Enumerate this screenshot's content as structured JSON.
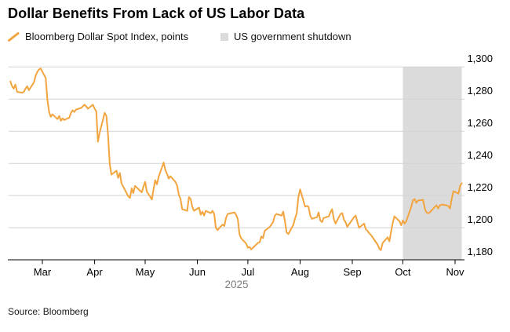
{
  "title": "Dollar Benefits From Lack of US Labor Data",
  "legend": {
    "series_label": "Bloomberg Dollar Spot Index, points",
    "band_label": "US government shutdown"
  },
  "source": "Source: Bloomberg",
  "colors": {
    "line": "#F2A43E",
    "band": "#DBDBDB",
    "grid": "#D3D3D3",
    "axis": "#000000",
    "tick_text": "#000000",
    "year_text": "#7D7D7D"
  },
  "chart_data": {
    "type": "line",
    "title": "Dollar Benefits From Lack of US Labor Data",
    "series_name": "Bloomberg Dollar Spot Index, points",
    "xlabel": "",
    "ylabel": "points",
    "ylim": [
      1180,
      1300
    ],
    "grid": "horizontal",
    "legend_position": "top-left",
    "y_axis": {
      "side": "right",
      "tick_values": [
        1180,
        1200,
        1220,
        1240,
        1260,
        1280,
        1300
      ],
      "tick_labels": [
        "1,180",
        "1,200",
        "1,220",
        "1,240",
        "1,260",
        "1,280",
        "1,300"
      ]
    },
    "x_axis": {
      "tick_dates": [
        "2025-03-01",
        "2025-04-01",
        "2025-05-01",
        "2025-06-01",
        "2025-07-01",
        "2025-08-01",
        "2025-09-01",
        "2025-10-01",
        "2025-11-01"
      ],
      "tick_labels": [
        "Mar",
        "Apr",
        "May",
        "Jun",
        "Jul",
        "Aug",
        "Sep",
        "Oct",
        "Nov"
      ],
      "year_label": "2025"
    },
    "band": {
      "label": "US government shutdown",
      "start": "2025-10-01",
      "end": "2025-11-05"
    },
    "points": [
      [
        "2025-02-10",
        1291
      ],
      [
        "2025-02-11",
        1288
      ],
      [
        "2025-02-12",
        1286.5
      ],
      [
        "2025-02-13",
        1289
      ],
      [
        "2025-02-14",
        1284.5
      ],
      [
        "2025-02-17",
        1284
      ],
      [
        "2025-02-18",
        1284.5
      ],
      [
        "2025-02-19",
        1286.5
      ],
      [
        "2025-02-20",
        1288
      ],
      [
        "2025-02-21",
        1285.5
      ],
      [
        "2025-02-24",
        1290.5
      ],
      [
        "2025-02-25",
        1294.5
      ],
      [
        "2025-02-26",
        1297
      ],
      [
        "2025-02-27",
        1298.5
      ],
      [
        "2025-02-28",
        1299
      ],
      [
        "2025-03-03",
        1293
      ],
      [
        "2025-03-04",
        1279.5
      ],
      [
        "2025-03-05",
        1272
      ],
      [
        "2025-03-06",
        1269
      ],
      [
        "2025-03-07",
        1270.5
      ],
      [
        "2025-03-10",
        1267.5
      ],
      [
        "2025-03-11",
        1269.5
      ],
      [
        "2025-03-12",
        1266.5
      ],
      [
        "2025-03-13",
        1268
      ],
      [
        "2025-03-14",
        1267
      ],
      [
        "2025-03-17",
        1268.5
      ],
      [
        "2025-03-18",
        1271.5
      ],
      [
        "2025-03-19",
        1273
      ],
      [
        "2025-03-20",
        1272
      ],
      [
        "2025-03-21",
        1273.5
      ],
      [
        "2025-03-24",
        1274.5
      ],
      [
        "2025-03-25",
        1275.5
      ],
      [
        "2025-03-26",
        1276.5
      ],
      [
        "2025-03-27",
        1275.5
      ],
      [
        "2025-03-28",
        1274
      ],
      [
        "2025-03-31",
        1276.5
      ],
      [
        "2025-04-01",
        1274
      ],
      [
        "2025-04-02",
        1272.5
      ],
      [
        "2025-04-03",
        1253.5
      ],
      [
        "2025-04-04",
        1259
      ],
      [
        "2025-04-07",
        1271.5
      ],
      [
        "2025-04-08",
        1269.5
      ],
      [
        "2025-04-09",
        1258
      ],
      [
        "2025-04-10",
        1239.5
      ],
      [
        "2025-04-11",
        1233
      ],
      [
        "2025-04-14",
        1235.5
      ],
      [
        "2025-04-15",
        1231
      ],
      [
        "2025-04-16",
        1234
      ],
      [
        "2025-04-17",
        1227.5
      ],
      [
        "2025-04-21",
        1219.5
      ],
      [
        "2025-04-22",
        1218.5
      ],
      [
        "2025-04-23",
        1224.5
      ],
      [
        "2025-04-24",
        1221.5
      ],
      [
        "2025-04-25",
        1226
      ],
      [
        "2025-04-28",
        1223
      ],
      [
        "2025-04-29",
        1222
      ],
      [
        "2025-04-30",
        1225.5
      ],
      [
        "2025-05-01",
        1228.5
      ],
      [
        "2025-05-02",
        1222.5
      ],
      [
        "2025-05-05",
        1217.5
      ],
      [
        "2025-05-06",
        1224
      ],
      [
        "2025-05-07",
        1229.5
      ],
      [
        "2025-05-08",
        1227
      ],
      [
        "2025-05-09",
        1231.5
      ],
      [
        "2025-05-12",
        1240.5
      ],
      [
        "2025-05-13",
        1236
      ],
      [
        "2025-05-14",
        1233.5
      ],
      [
        "2025-05-15",
        1230.5
      ],
      [
        "2025-05-16",
        1232
      ],
      [
        "2025-05-19",
        1228.5
      ],
      [
        "2025-05-20",
        1226
      ],
      [
        "2025-05-21",
        1220.5
      ],
      [
        "2025-05-22",
        1218
      ],
      [
        "2025-05-23",
        1211.5
      ],
      [
        "2025-05-26",
        1210.5
      ],
      [
        "2025-05-27",
        1219
      ],
      [
        "2025-05-28",
        1218
      ],
      [
        "2025-05-29",
        1213
      ],
      [
        "2025-05-30",
        1210.5
      ],
      [
        "2025-06-02",
        1212.5
      ],
      [
        "2025-06-03",
        1208
      ],
      [
        "2025-06-04",
        1210
      ],
      [
        "2025-06-05",
        1207.5
      ],
      [
        "2025-06-06",
        1210.5
      ],
      [
        "2025-06-09",
        1209
      ],
      [
        "2025-06-10",
        1210.5
      ],
      [
        "2025-06-11",
        1208.5
      ],
      [
        "2025-06-12",
        1200
      ],
      [
        "2025-06-13",
        1198.5
      ],
      [
        "2025-06-16",
        1202
      ],
      [
        "2025-06-17",
        1201
      ],
      [
        "2025-06-18",
        1206
      ],
      [
        "2025-06-19",
        1208.5
      ],
      [
        "2025-06-23",
        1209.5
      ],
      [
        "2025-06-24",
        1208
      ],
      [
        "2025-06-25",
        1205.5
      ],
      [
        "2025-06-26",
        1196
      ],
      [
        "2025-06-27",
        1193.5
      ],
      [
        "2025-06-30",
        1190
      ],
      [
        "2025-07-01",
        1187.5
      ],
      [
        "2025-07-02",
        1188
      ],
      [
        "2025-07-03",
        1186.5
      ],
      [
        "2025-07-07",
        1190.5
      ],
      [
        "2025-07-08",
        1191
      ],
      [
        "2025-07-09",
        1194.5
      ],
      [
        "2025-07-10",
        1193.5
      ],
      [
        "2025-07-11",
        1198
      ],
      [
        "2025-07-14",
        1200.5
      ],
      [
        "2025-07-15",
        1202
      ],
      [
        "2025-07-16",
        1203.5
      ],
      [
        "2025-07-17",
        1207.5
      ],
      [
        "2025-07-18",
        1208.5
      ],
      [
        "2025-07-21",
        1207.5
      ],
      [
        "2025-07-22",
        1210
      ],
      [
        "2025-07-23",
        1204
      ],
      [
        "2025-07-24",
        1197
      ],
      [
        "2025-07-25",
        1196
      ],
      [
        "2025-07-28",
        1201.8
      ],
      [
        "2025-07-29",
        1205.7
      ],
      [
        "2025-07-30",
        1209
      ],
      [
        "2025-07-31",
        1219
      ],
      [
        "2025-08-01",
        1223.8
      ],
      [
        "2025-08-04",
        1213
      ],
      [
        "2025-08-05",
        1213.5
      ],
      [
        "2025-08-06",
        1213
      ],
      [
        "2025-08-07",
        1207.5
      ],
      [
        "2025-08-08",
        1205.5
      ],
      [
        "2025-08-11",
        1206.5
      ],
      [
        "2025-08-12",
        1209.5
      ],
      [
        "2025-08-13",
        1204.5
      ],
      [
        "2025-08-14",
        1203.5
      ],
      [
        "2025-08-15",
        1206
      ],
      [
        "2025-08-18",
        1207
      ],
      [
        "2025-08-19",
        1209.5
      ],
      [
        "2025-08-20",
        1211.5
      ],
      [
        "2025-08-21",
        1205.5
      ],
      [
        "2025-08-22",
        1202.5
      ],
      [
        "2025-08-25",
        1208.5
      ],
      [
        "2025-08-26",
        1209
      ],
      [
        "2025-08-27",
        1205
      ],
      [
        "2025-08-28",
        1203.5
      ],
      [
        "2025-08-29",
        1200.5
      ],
      [
        "2025-09-01",
        1205
      ],
      [
        "2025-09-02",
        1206.5
      ],
      [
        "2025-09-03",
        1207.5
      ],
      [
        "2025-09-04",
        1203.5
      ],
      [
        "2025-09-05",
        1200
      ],
      [
        "2025-09-08",
        1202.5
      ],
      [
        "2025-09-09",
        1199
      ],
      [
        "2025-09-10",
        1198
      ],
      [
        "2025-09-11",
        1196.5
      ],
      [
        "2025-09-12",
        1195.5
      ],
      [
        "2025-09-15",
        1191
      ],
      [
        "2025-09-16",
        1189.5
      ],
      [
        "2025-09-17",
        1187
      ],
      [
        "2025-09-18",
        1186
      ],
      [
        "2025-09-19",
        1190.5
      ],
      [
        "2025-09-22",
        1194
      ],
      [
        "2025-09-23",
        1191.5
      ],
      [
        "2025-09-24",
        1197.5
      ],
      [
        "2025-09-25",
        1203
      ],
      [
        "2025-09-26",
        1207
      ],
      [
        "2025-09-29",
        1204
      ],
      [
        "2025-09-30",
        1201.5
      ],
      [
        "2025-10-01",
        1204.5
      ],
      [
        "2025-10-02",
        1202.5
      ],
      [
        "2025-10-03",
        1204
      ],
      [
        "2025-10-06",
        1213
      ],
      [
        "2025-10-07",
        1217
      ],
      [
        "2025-10-08",
        1217.8
      ],
      [
        "2025-10-09",
        1215.4
      ],
      [
        "2025-10-10",
        1216.9
      ],
      [
        "2025-10-13",
        1217.3
      ],
      [
        "2025-10-14",
        1211.9
      ],
      [
        "2025-10-15",
        1209.5
      ],
      [
        "2025-10-16",
        1209
      ],
      [
        "2025-10-17",
        1209.5
      ],
      [
        "2025-10-20",
        1212.9
      ],
      [
        "2025-10-21",
        1213.9
      ],
      [
        "2025-10-22",
        1211.9
      ],
      [
        "2025-10-23",
        1213.9
      ],
      [
        "2025-10-24",
        1214.4
      ],
      [
        "2025-10-27",
        1213.9
      ],
      [
        "2025-10-28",
        1213.4
      ],
      [
        "2025-10-29",
        1211.9
      ],
      [
        "2025-10-30",
        1217.8
      ],
      [
        "2025-10-31",
        1222.7
      ],
      [
        "2025-11-03",
        1221.2
      ],
      [
        "2025-11-04",
        1226
      ],
      [
        "2025-11-05",
        1227.6
      ]
    ]
  }
}
